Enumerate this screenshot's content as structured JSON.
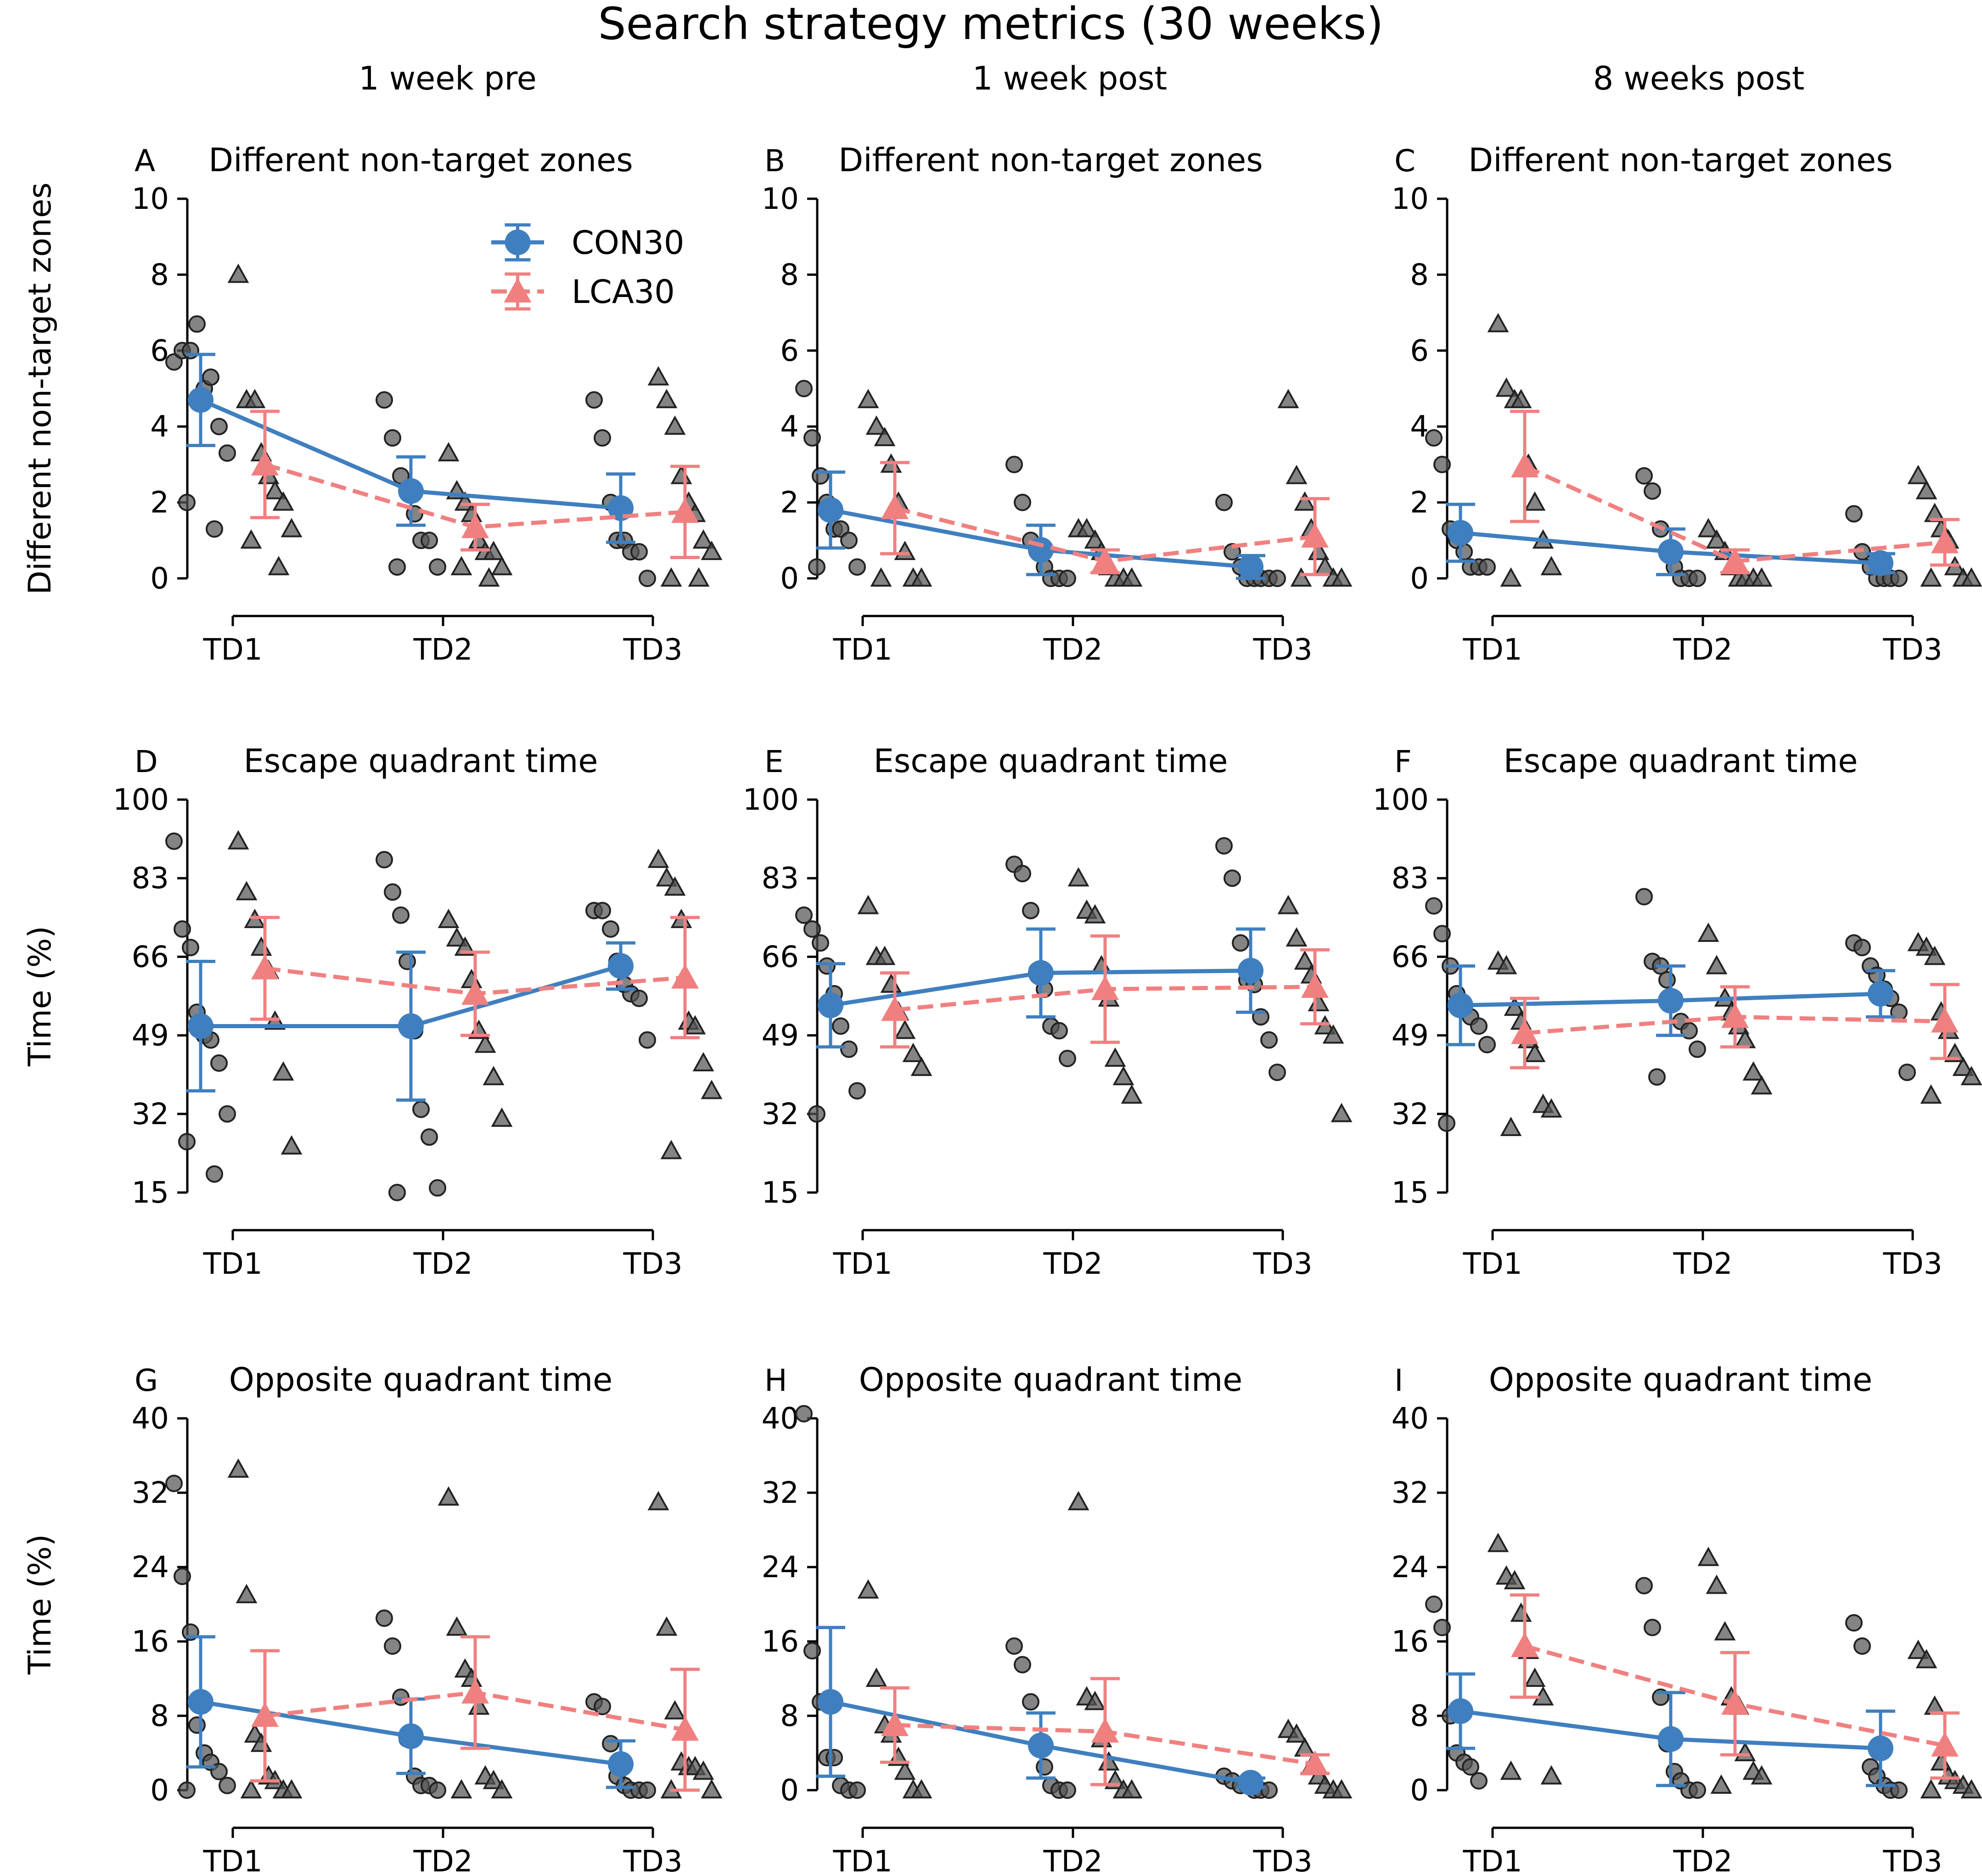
{
  "figure_title": "Search strategy metrics (30 weeks)",
  "column_headers": [
    "1 week pre",
    "1 week post",
    "8 weeks post"
  ],
  "legend": [
    {
      "label": "CON30",
      "color": "#3f7fbf",
      "marker": "circle",
      "line": "solid"
    },
    {
      "label": "LCA30",
      "color": "#f08080",
      "marker": "triangle",
      "line": "dashed"
    }
  ],
  "colors": {
    "CON30": "#3f7fbf",
    "LCA30": "#f08080",
    "individual": "#555555"
  },
  "chart_data": [
    {
      "letter": "A",
      "type": "line",
      "title": "Different non-target zones",
      "ylabel": "Different non-target zones",
      "categories": [
        "TD1",
        "TD2",
        "TD3"
      ],
      "ylim": [
        0,
        10
      ],
      "yticks": [
        "0",
        "2",
        "4",
        "6",
        "8",
        "10"
      ],
      "series": [
        {
          "name": "CON30",
          "values": [
            4.7,
            2.3,
            1.85
          ],
          "err": [
            1.2,
            0.9,
            0.9
          ]
        },
        {
          "name": "LCA30",
          "values": [
            3.0,
            1.35,
            1.75
          ],
          "err": [
            1.4,
            0.6,
            1.2
          ]
        }
      ],
      "points": {
        "CON30": [
          [
            5.7,
            6.0,
            6.0,
            6.7,
            5.0,
            5.3,
            4.0,
            3.3,
            2.0,
            1.3
          ],
          [
            4.7,
            3.7,
            2.7,
            2.3,
            1.7,
            1.0,
            1.0,
            0.3,
            0.3
          ],
          [
            4.7,
            3.7,
            2.0,
            1.0,
            1.0,
            0.7,
            0.7,
            0.0
          ]
        ],
        "LCA30": [
          [
            8.0,
            4.7,
            4.7,
            3.3,
            2.7,
            2.3,
            2.0,
            1.3,
            1.0,
            0.3
          ],
          [
            3.3,
            2.3,
            2.0,
            1.7,
            1.0,
            0.7,
            0.7,
            0.3,
            0.3,
            0.0
          ],
          [
            5.3,
            4.7,
            4.0,
            2.7,
            2.0,
            1.7,
            1.0,
            0.7,
            0.0,
            0.0
          ]
        ]
      }
    },
    {
      "letter": "B",
      "type": "line",
      "title": "Different non-target zones",
      "ylabel": "",
      "categories": [
        "TD1",
        "TD2",
        "TD3"
      ],
      "ylim": [
        0,
        10
      ],
      "yticks": [
        "0",
        "2",
        "4",
        "6",
        "8",
        "10"
      ],
      "series": [
        {
          "name": "CON30",
          "values": [
            1.8,
            0.75,
            0.3
          ],
          "err": [
            1.0,
            0.65,
            0.3
          ]
        },
        {
          "name": "LCA30",
          "values": [
            1.85,
            0.45,
            1.1
          ],
          "err": [
            1.2,
            0.3,
            1.0
          ]
        }
      ],
      "points": {
        "CON30": [
          [
            5.0,
            3.7,
            2.7,
            2.0,
            1.3,
            1.3,
            1.0,
            0.3,
            0.3
          ],
          [
            3.0,
            2.0,
            1.0,
            0.7,
            0.3,
            0.0,
            0.0,
            0.0
          ],
          [
            2.0,
            0.7,
            0.3,
            0.0,
            0.0,
            0.0,
            0.0,
            0.0
          ]
        ],
        "LCA30": [
          [
            4.7,
            4.0,
            3.7,
            3.0,
            2.0,
            0.7,
            0.0,
            0.0,
            0.0
          ],
          [
            1.3,
            1.3,
            1.0,
            0.7,
            0.3,
            0.0,
            0.0,
            0.0
          ],
          [
            4.7,
            2.7,
            2.0,
            1.3,
            0.7,
            0.3,
            0.0,
            0.0,
            0.0
          ]
        ]
      }
    },
    {
      "letter": "C",
      "type": "line",
      "title": "Different non-target zones",
      "ylabel": "",
      "categories": [
        "TD1",
        "TD2",
        "TD3"
      ],
      "ylim": [
        0,
        10
      ],
      "yticks": [
        "0",
        "2",
        "4",
        "6",
        "8",
        "10"
      ],
      "series": [
        {
          "name": "CON30",
          "values": [
            1.2,
            0.7,
            0.4
          ],
          "err": [
            0.75,
            0.6,
            0.25
          ]
        },
        {
          "name": "LCA30",
          "values": [
            2.95,
            0.45,
            0.95
          ],
          "err": [
            1.45,
            0.3,
            0.6
          ]
        }
      ],
      "points": {
        "CON30": [
          [
            3.7,
            3.0,
            1.3,
            1.0,
            0.7,
            0.3,
            0.3,
            0.3
          ],
          [
            2.7,
            2.3,
            1.3,
            0.7,
            0.3,
            0.0,
            0.0,
            0.0
          ],
          [
            1.7,
            0.7,
            0.3,
            0.0,
            0.0,
            0.0,
            0.0
          ]
        ],
        "LCA30": [
          [
            6.7,
            5.0,
            4.7,
            4.7,
            3.0,
            2.0,
            1.0,
            0.3,
            0.0
          ],
          [
            1.3,
            1.0,
            0.7,
            0.3,
            0.0,
            0.0,
            0.0,
            0.0
          ],
          [
            2.7,
            2.3,
            1.7,
            1.3,
            1.0,
            0.3,
            0.0,
            0.0,
            0.0
          ]
        ]
      }
    },
    {
      "letter": "D",
      "type": "line",
      "title": "Escape quadrant time",
      "ylabel": "Time (%)",
      "categories": [
        "TD1",
        "TD2",
        "TD3"
      ],
      "ylim": [
        15,
        100
      ],
      "yticks": [
        "15",
        "32",
        "49",
        "66",
        "83",
        "100"
      ],
      "series": [
        {
          "name": "CON30",
          "values": [
            51,
            51,
            64
          ],
          "err": [
            14,
            16,
            5
          ]
        },
        {
          "name": "LCA30",
          "values": [
            63.5,
            58,
            61.5
          ],
          "err": [
            11,
            9,
            13
          ]
        }
      ],
      "points": {
        "CON30": [
          [
            91,
            72,
            68,
            54,
            49,
            48,
            43,
            32,
            26,
            19
          ],
          [
            87,
            80,
            75,
            65,
            50,
            33,
            27,
            16,
            15
          ],
          [
            76,
            76,
            72,
            65,
            60,
            58,
            57,
            48
          ]
        ],
        "LCA30": [
          [
            91,
            80,
            74,
            68,
            63,
            52,
            41,
            25
          ],
          [
            74,
            70,
            68,
            61,
            50,
            47,
            40,
            31
          ],
          [
            87,
            83,
            81,
            74,
            52,
            51,
            43,
            37,
            24
          ]
        ]
      }
    },
    {
      "letter": "E",
      "type": "line",
      "title": "Escape quadrant time",
      "ylabel": "",
      "categories": [
        "TD1",
        "TD2",
        "TD3"
      ],
      "ylim": [
        15,
        100
      ],
      "yticks": [
        "15",
        "32",
        "49",
        "66",
        "83",
        "100"
      ],
      "series": [
        {
          "name": "CON30",
          "values": [
            55.5,
            62.5,
            63
          ],
          "err": [
            9,
            9.5,
            9
          ]
        },
        {
          "name": "LCA30",
          "values": [
            54.5,
            59,
            59.5
          ],
          "err": [
            8,
            11.5,
            8
          ]
        }
      ],
      "points": {
        "CON30": [
          [
            75,
            72,
            69,
            64,
            58,
            51,
            46,
            37,
            32
          ],
          [
            86,
            84,
            76,
            63,
            59,
            51,
            50,
            44
          ],
          [
            90,
            83,
            69,
            61,
            60,
            53,
            48,
            41
          ]
        ],
        "LCA30": [
          [
            77,
            66,
            66,
            60,
            54,
            50,
            45,
            42
          ],
          [
            83,
            76,
            75,
            64,
            57,
            44,
            40,
            36
          ],
          [
            77,
            70,
            65,
            62,
            56,
            51,
            49,
            32
          ]
        ]
      }
    },
    {
      "letter": "F",
      "type": "line",
      "title": "Escape quadrant time",
      "ylabel": "",
      "categories": [
        "TD1",
        "TD2",
        "TD3"
      ],
      "ylim": [
        15,
        100
      ],
      "yticks": [
        "15",
        "32",
        "49",
        "66",
        "83",
        "100"
      ],
      "series": [
        {
          "name": "CON30",
          "values": [
            55.5,
            56.5,
            58
          ],
          "err": [
            8.5,
            7.5,
            5
          ]
        },
        {
          "name": "LCA30",
          "values": [
            49.5,
            53,
            52
          ],
          "err": [
            7.5,
            6.5,
            8
          ]
        }
      ],
      "points": {
        "CON30": [
          [
            77,
            71,
            64,
            58,
            55,
            53,
            51,
            47,
            30
          ],
          [
            79,
            65,
            64,
            61,
            57,
            52,
            50,
            46,
            40
          ],
          [
            69,
            68,
            64,
            62,
            59,
            57,
            54,
            41
          ]
        ],
        "LCA30": [
          [
            65,
            64,
            55,
            52,
            48,
            45,
            34,
            33,
            29
          ],
          [
            71,
            64,
            57,
            54,
            51,
            48,
            41,
            38
          ],
          [
            69,
            68,
            66,
            54,
            50,
            45,
            42,
            40,
            36
          ]
        ]
      }
    },
    {
      "letter": "G",
      "type": "line",
      "title": "Opposite quadrant time",
      "ylabel": "Time (%)",
      "categories": [
        "TD1",
        "TD2",
        "TD3"
      ],
      "ylim": [
        0,
        40
      ],
      "yticks": [
        "0",
        "8",
        "16",
        "24",
        "32",
        "40"
      ],
      "series": [
        {
          "name": "CON30",
          "values": [
            9.5,
            5.8,
            2.8
          ],
          "err": [
            7,
            4,
            2.5
          ]
        },
        {
          "name": "LCA30",
          "values": [
            8,
            10.5,
            6.5
          ],
          "err": [
            7,
            6,
            6.5
          ]
        }
      ],
      "points": {
        "CON30": [
          [
            33,
            23,
            17,
            7,
            4,
            3,
            2,
            0.5,
            0
          ],
          [
            18.5,
            15.5,
            10,
            5.5,
            1.5,
            0.5,
            0.5,
            0
          ],
          [
            9.5,
            9,
            5,
            1.5,
            0.5,
            0,
            0,
            0
          ]
        ],
        "LCA30": [
          [
            34.5,
            21,
            6,
            5,
            1.5,
            1,
            0,
            0,
            0
          ],
          [
            31.5,
            17.5,
            13,
            12,
            9,
            1.5,
            1,
            0,
            0
          ],
          [
            31,
            17.5,
            8.5,
            3,
            2.5,
            2.5,
            2,
            0,
            0
          ]
        ]
      }
    },
    {
      "letter": "H",
      "type": "line",
      "title": "Opposite quadrant time",
      "ylabel": "",
      "categories": [
        "TD1",
        "TD2",
        "TD3"
      ],
      "ylim": [
        0,
        40
      ],
      "yticks": [
        "0",
        "8",
        "16",
        "24",
        "32",
        "40"
      ],
      "series": [
        {
          "name": "CON30",
          "values": [
            9.5,
            4.8,
            0.8
          ],
          "err": [
            8,
            3.5,
            0.5
          ]
        },
        {
          "name": "LCA30",
          "values": [
            7,
            6.3,
            2.8
          ],
          "err": [
            4,
            5.7,
            1
          ]
        }
      ],
      "points": {
        "CON30": [
          [
            40.5,
            15,
            9.5,
            3.5,
            3.5,
            0.5,
            0,
            0
          ],
          [
            15.5,
            13.5,
            9.5,
            5,
            2.5,
            0.5,
            0,
            0
          ],
          [
            1.5,
            1,
            0.5,
            0.5,
            0,
            0,
            0
          ]
        ],
        "LCA30": [
          [
            21.5,
            12,
            7,
            6,
            3.5,
            2,
            0,
            0
          ],
          [
            31,
            10,
            9.5,
            5.5,
            3,
            1,
            0,
            0
          ],
          [
            6.5,
            6,
            4.5,
            2.5,
            1.5,
            0.5,
            0,
            0
          ]
        ]
      }
    },
    {
      "letter": "I",
      "type": "line",
      "title": "Opposite quadrant time",
      "ylabel": "",
      "categories": [
        "TD1",
        "TD2",
        "TD3"
      ],
      "ylim": [
        0,
        40
      ],
      "yticks": [
        "0",
        "8",
        "16",
        "24",
        "32",
        "40"
      ],
      "series": [
        {
          "name": "CON30",
          "values": [
            8.5,
            5.5,
            4.5
          ],
          "err": [
            4,
            5,
            4
          ]
        },
        {
          "name": "LCA30",
          "values": [
            15.5,
            9.3,
            4.8
          ],
          "err": [
            5.5,
            5.5,
            3.5
          ]
        }
      ],
      "points": {
        "CON30": [
          [
            20,
            17.5,
            8,
            4,
            3,
            2.5,
            1
          ],
          [
            22,
            17.5,
            10,
            5,
            2,
            1,
            0,
            0
          ],
          [
            18,
            15.5,
            2.5,
            1.5,
            0.5,
            0,
            0
          ]
        ],
        "LCA30": [
          [
            26.5,
            23,
            22.5,
            19,
            15,
            12,
            10,
            1.5,
            2
          ],
          [
            25,
            22,
            17,
            10,
            9,
            4,
            2,
            1.5,
            0.5
          ],
          [
            15,
            14,
            9,
            3,
            1.5,
            1,
            0.5,
            0,
            0
          ]
        ]
      }
    }
  ]
}
